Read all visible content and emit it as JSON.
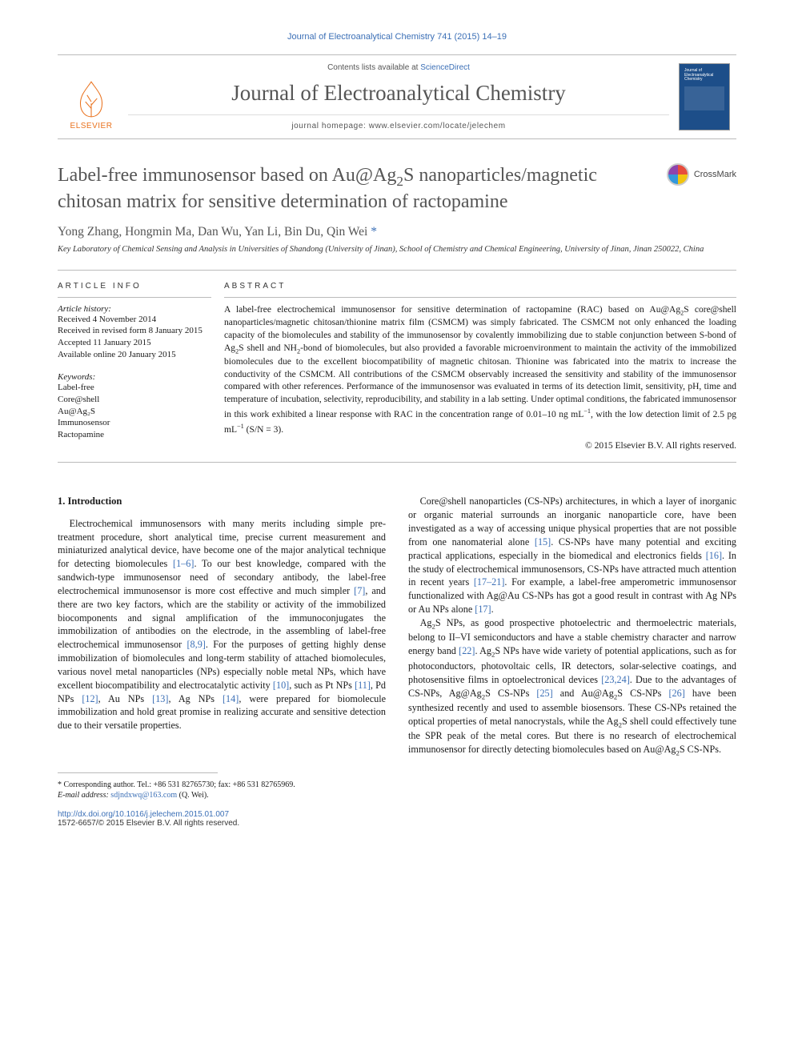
{
  "header": {
    "citation": "Journal of Electroanalytical Chemistry 741 (2015) 14–19",
    "contents_prefix": "Contents lists available at ",
    "contents_link": "ScienceDirect",
    "journal_name": "Journal of Electroanalytical Chemistry",
    "homepage": "journal homepage: www.elsevier.com/locate/jelechem",
    "publisher": "ELSEVIER",
    "cover_text": "Journal of Electroanalytical Chemistry"
  },
  "article": {
    "title_html": "Label-free immunosensor based on Au@Ag<sub>2</sub>S nanoparticles/magnetic chitosan matrix for sensitive determination of ractopamine",
    "crossmark": "CrossMark",
    "authors": "Yong Zhang, Hongmin Ma, Dan Wu, Yan Li, Bin Du, Qin Wei ",
    "corr_mark": "*",
    "affiliation": "Key Laboratory of Chemical Sensing and Analysis in Universities of Shandong (University of Jinan), School of Chemistry and Chemical Engineering, University of Jinan, Jinan 250022, China"
  },
  "info": {
    "heading": "ARTICLE INFO",
    "history_label": "Article history:",
    "history": [
      "Received 4 November 2014",
      "Received in revised form 8 January 2015",
      "Accepted 11 January 2015",
      "Available online 20 January 2015"
    ],
    "keywords_label": "Keywords:",
    "keywords": [
      "Label-free",
      "Core@shell",
      "Au@Ag₂S",
      "Immunosensor",
      "Ractopamine"
    ]
  },
  "abstract": {
    "heading": "ABSTRACT",
    "text_html": "A label-free electrochemical immunosensor for sensitive determination of ractopamine (RAC) based on Au@Ag<sub>2</sub>S core@shell nanoparticles/magnetic chitosan/thionine matrix film (CSMCM) was simply fabricated. The CSMCM not only enhanced the loading capacity of the biomolecules and stability of the immunosensor by covalently immobilizing due to stable conjunction between S-bond of Ag<sub>2</sub>S shell and NH<sub>2</sub>-bond of biomolecules, but also provided a favorable microenvironment to maintain the activity of the immobilized biomolecules due to the excellent biocompatibility of magnetic chitosan. Thionine was fabricated into the matrix to increase the conductivity of the CSMCM. All contributions of the CSMCM observably increased the sensitivity and stability of the immunosensor compared with other references. Performance of the immunosensor was evaluated in terms of its detection limit, sensitivity, pH, time and temperature of incubation, selectivity, reproducibility, and stability in a lab setting. Under optimal conditions, the fabricated immunosensor in this work exhibited a linear response with RAC in the concentration range of 0.01–10 ng mL<sup>−1</sup>, with the low detection limit of 2.5 pg mL<sup>−1</sup> (S/N = 3).",
    "copyright": "© 2015 Elsevier B.V. All rights reserved."
  },
  "body": {
    "section_title": "1. Introduction",
    "p1_html": "Electrochemical immunosensors with many merits including simple pre-treatment procedure, short analytical time, precise current measurement and miniaturized analytical device, have become one of the major analytical technique for detecting biomolecules <span class=\"cite\">[1–6]</span>. To our best knowledge, compared with the sandwich-type immunosensor need of secondary antibody, the label-free electrochemical immunosensor is more cost effective and much simpler <span class=\"cite\">[7]</span>, and there are two key factors, which are the stability or activity of the immobilized biocomponents and signal amplification of the immunoconjugates the immobilization of antibodies on the electrode, in the assembling of label-free electrochemical immunosensor <span class=\"cite\">[8,9]</span>. For the purposes of getting highly dense immobilization of biomolecules and long-term stability of attached biomolecules, various novel metal nanoparticles (NPs) especially noble metal NPs, which have excellent biocompatibility and electrocatalytic activity <span class=\"cite\">[10]</span>, such as Pt NPs <span class=\"cite\">[11]</span>, Pd NPs <span class=\"cite\">[12]</span>, Au NPs <span class=\"cite\">[13]</span>, Ag NPs <span class=\"cite\">[14]</span>, were prepared for biomolecule immobilization and hold great promise in realizing accurate and sensitive detection due to their versatile properties.",
    "p2_html": "Core@shell nanoparticles (CS-NPs) architectures, in which a layer of inorganic or organic material surrounds an inorganic nanoparticle core, have been investigated as a way of accessing unique physical properties that are not possible from one nanomaterial alone <span class=\"cite\">[15]</span>. CS-NPs have many potential and exciting practical applications, especially in the biomedical and electronics fields <span class=\"cite\">[16]</span>. In the study of electrochemical immunosensors, CS-NPs have attracted much attention in recent years <span class=\"cite\">[17–21]</span>. For example, a label-free amperometric immunosensor functionalized with Ag@Au CS-NPs has got a good result in contrast with Ag NPs or Au NPs alone <span class=\"cite\">[17]</span>.",
    "p3_html": "Ag<sub>2</sub>S NPs, as good prospective photoelectric and thermoelectric materials, belong to II–VI semiconductors and have a stable chemistry character and narrow energy band <span class=\"cite\">[22]</span>. Ag<sub>2</sub>S NPs have wide variety of potential applications, such as for photoconductors, photovoltaic cells, IR detectors, solar-selective coatings, and photosensitive films in optoelectronical devices <span class=\"cite\">[23,24]</span>. Due to the advantages of CS-NPs, Ag@Ag<sub>2</sub>S CS-NPs <span class=\"cite\">[25]</span> and Au@Ag<sub>2</sub>S CS-NPs <span class=\"cite\">[26]</span> have been synthesized recently and used to assemble biosensors. These CS-NPs retained the optical properties of metal nanocrystals, while the Ag<sub>2</sub>S shell could effectively tune the SPR peak of the metal cores. But there is no research of electrochemical immunosensor for directly detecting biomolecules based on Au@Ag<sub>2</sub>S CS-NPs."
  },
  "footer": {
    "corr_html": "* Corresponding author. Tel.: +86 531 82765730; fax: +86 531 82765969.",
    "email_label": "E-mail address:",
    "email": "sdjndxwq@163.com",
    "email_tail": " (Q. Wei).",
    "doi": "http://dx.doi.org/10.1016/j.jelechem.2015.01.007",
    "issn": "1572-6657/© 2015 Elsevier B.V. All rights reserved."
  },
  "colors": {
    "link": "#3b6fb6",
    "orange": "#e9711c",
    "rule": "#bbbbbb",
    "text": "#1a1a1a",
    "muted": "#555555"
  }
}
